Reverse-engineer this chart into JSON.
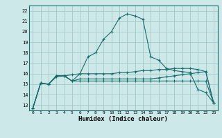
{
  "title": "",
  "xlabel": "Humidex (Indice chaleur)",
  "ylabel": "",
  "bg_color": "#cce8e8",
  "grid_color": "#a8cccc",
  "line_color": "#1a6b6b",
  "xlim": [
    -0.5,
    23.5
  ],
  "ylim": [
    12.5,
    22.5
  ],
  "xticks": [
    0,
    1,
    2,
    3,
    4,
    5,
    6,
    7,
    8,
    9,
    10,
    11,
    12,
    13,
    14,
    15,
    16,
    17,
    18,
    19,
    20,
    21,
    22,
    23
  ],
  "yticks": [
    13,
    14,
    15,
    16,
    17,
    18,
    19,
    20,
    21,
    22
  ],
  "series": [
    [
      12.7,
      15.1,
      15.0,
      15.7,
      15.8,
      15.3,
      16.0,
      17.6,
      18.0,
      19.3,
      20.0,
      21.3,
      21.7,
      21.5,
      21.2,
      17.6,
      17.3,
      16.5,
      16.3,
      16.2,
      16.1,
      14.5,
      14.2,
      13.2
    ],
    [
      12.7,
      15.1,
      15.0,
      15.8,
      15.8,
      15.9,
      16.0,
      16.0,
      16.0,
      16.0,
      16.0,
      16.1,
      16.1,
      16.2,
      16.3,
      16.3,
      16.4,
      16.4,
      16.5,
      16.5,
      16.5,
      16.4,
      16.2,
      13.2
    ],
    [
      12.7,
      15.1,
      15.0,
      15.8,
      15.8,
      15.3,
      15.5,
      15.5,
      15.5,
      15.5,
      15.5,
      15.5,
      15.5,
      15.5,
      15.5,
      15.5,
      15.6,
      15.7,
      15.8,
      15.9,
      16.0,
      16.1,
      16.2,
      13.2
    ],
    [
      12.7,
      15.1,
      15.0,
      15.8,
      15.8,
      15.3,
      15.3,
      15.3,
      15.3,
      15.3,
      15.3,
      15.3,
      15.3,
      15.3,
      15.3,
      15.3,
      15.3,
      15.3,
      15.3,
      15.3,
      15.3,
      15.3,
      15.3,
      13.2
    ]
  ]
}
